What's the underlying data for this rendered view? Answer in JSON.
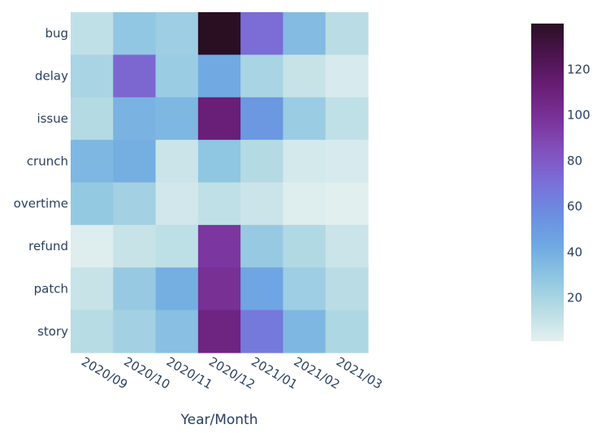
{
  "chart_data": {
    "type": "heatmap",
    "xlabel": "Year/Month",
    "ylabel": "",
    "x": [
      "2020/09",
      "2020/10",
      "2020/11",
      "2020/12",
      "2021/01",
      "2021/02",
      "2021/03"
    ],
    "y": [
      "bug",
      "delay",
      "issue",
      "crunch",
      "overtime",
      "refund",
      "patch",
      "story"
    ],
    "z": [
      [
        12,
        28,
        24,
        140,
        72,
        34,
        14
      ],
      [
        20,
        74,
        25,
        42,
        20,
        10,
        5
      ],
      [
        16,
        38,
        36,
        112,
        52,
        25,
        12
      ],
      [
        36,
        40,
        9,
        29,
        16,
        6,
        5
      ],
      [
        27,
        22,
        7,
        12,
        9,
        3,
        2
      ],
      [
        3,
        10,
        13,
        96,
        26,
        17,
        9
      ],
      [
        10,
        26,
        40,
        100,
        45,
        24,
        14
      ],
      [
        15,
        22,
        32,
        108,
        66,
        36,
        18
      ]
    ],
    "colorscale": [
      [
        0.0,
        "#e4f0f0"
      ],
      [
        0.1,
        "#b7dce4"
      ],
      [
        0.2,
        "#8fc6e2"
      ],
      [
        0.3,
        "#6fa9e2"
      ],
      [
        0.4,
        "#6b8ee1"
      ],
      [
        0.5,
        "#7a6fd9"
      ],
      [
        0.6,
        "#8250bb"
      ],
      [
        0.7,
        "#7a3299"
      ],
      [
        0.8,
        "#691e76"
      ],
      [
        0.9,
        "#4c1450"
      ],
      [
        1.0,
        "#2a0f23"
      ]
    ],
    "zmin": 1,
    "zmax": 140,
    "colorbar": {
      "ticks": [
        20,
        40,
        60,
        80,
        100,
        120
      ]
    }
  }
}
